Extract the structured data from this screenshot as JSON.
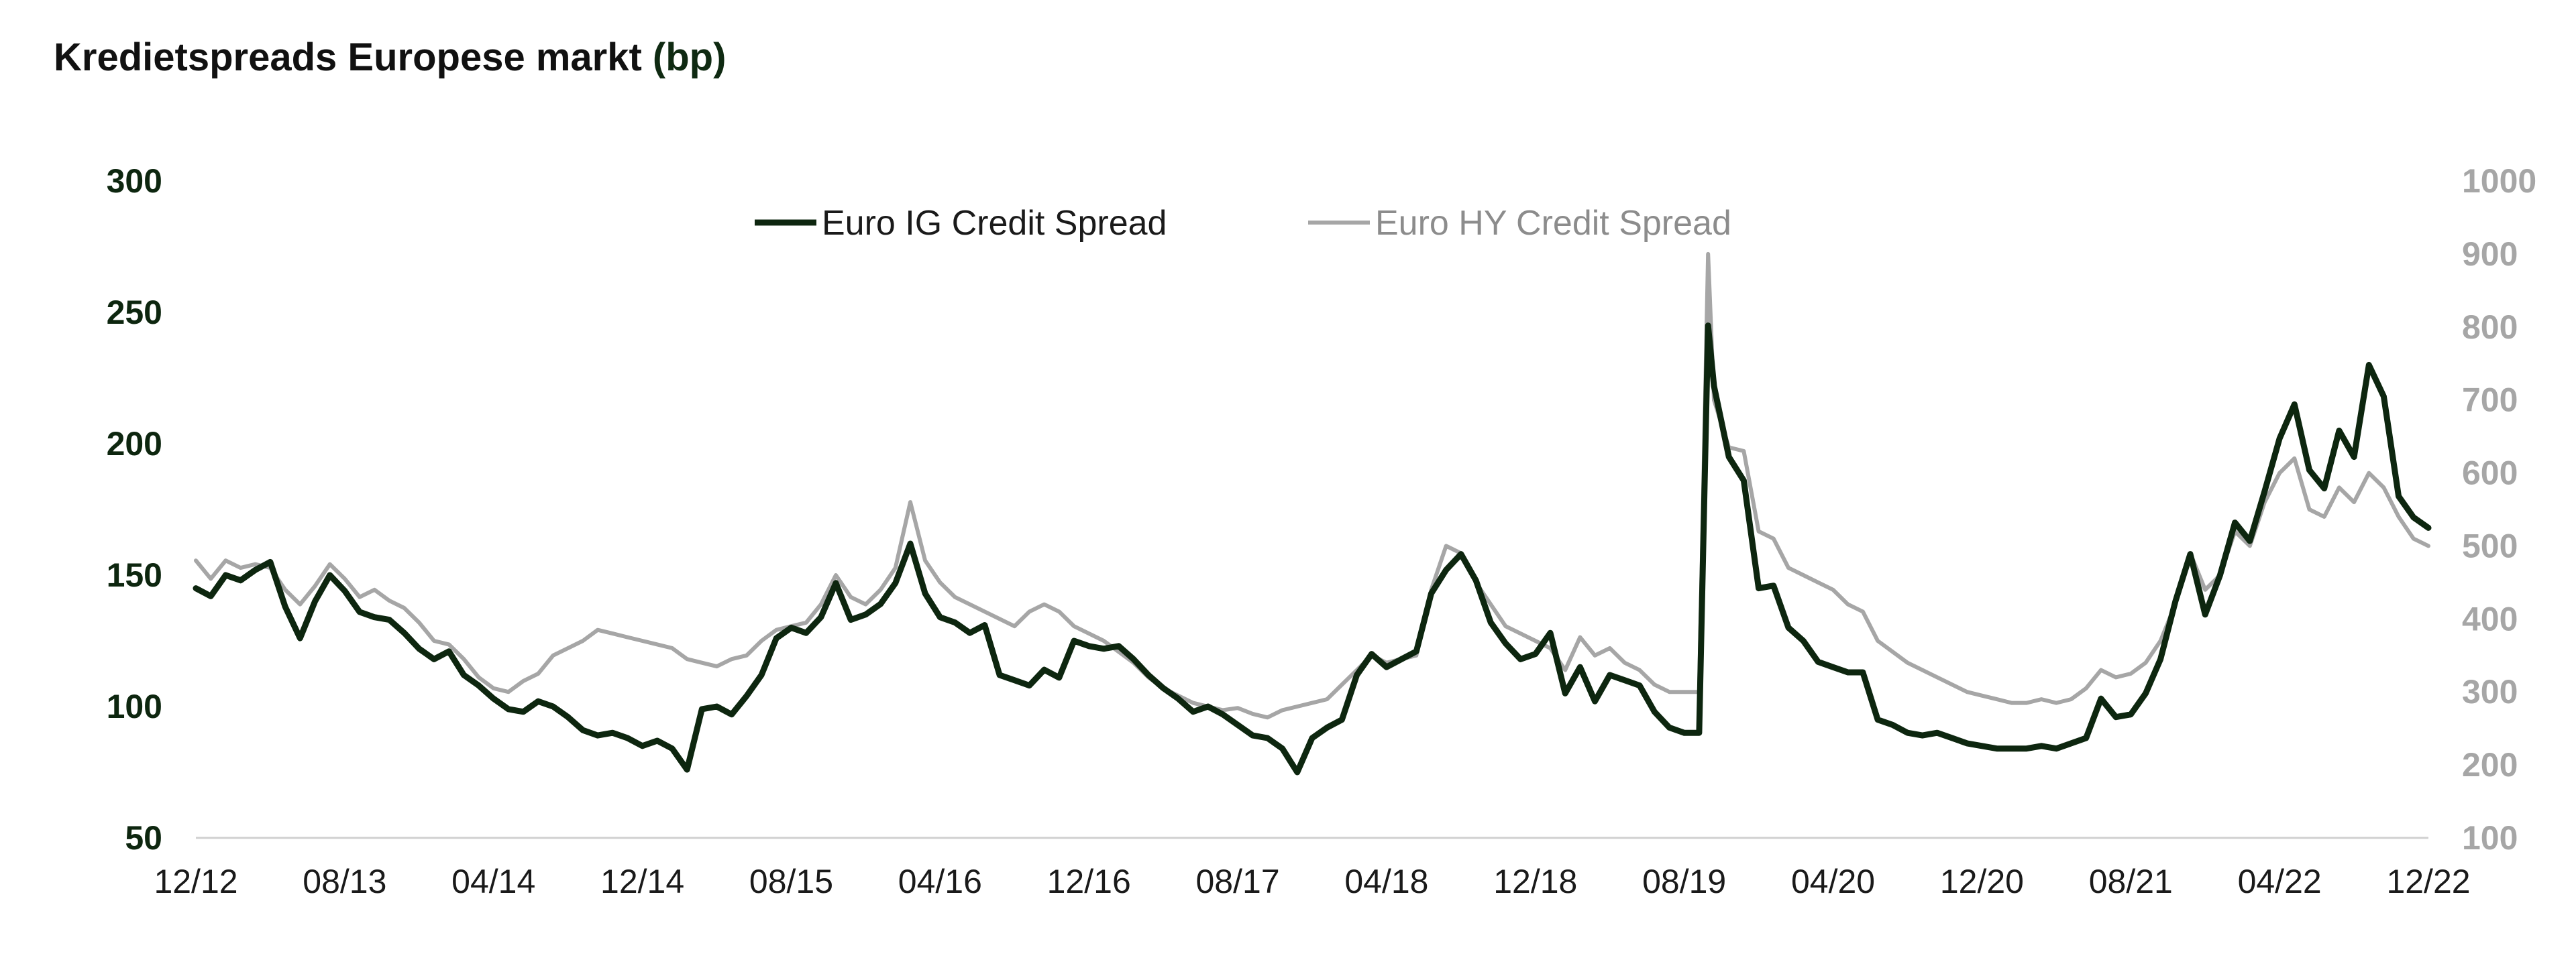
{
  "title": "Kredietspreads Europese markt",
  "title_unit": "(bp)",
  "chart_data": {
    "type": "line",
    "title": "Kredietspreads Europese markt (bp)",
    "x_tick_labels": [
      "12/12",
      "08/13",
      "04/14",
      "12/14",
      "08/15",
      "04/16",
      "12/16",
      "08/17",
      "04/18",
      "12/18",
      "08/19",
      "04/20",
      "12/20",
      "08/21",
      "04/22",
      "12/22"
    ],
    "y_left": {
      "ticks": [
        "300",
        "250",
        "200",
        "150",
        "100",
        "50"
      ],
      "range": [
        50,
        300
      ]
    },
    "y_right": {
      "ticks": [
        "1000",
        "900",
        "800",
        "700",
        "600",
        "500",
        "400",
        "300",
        "200",
        "100"
      ],
      "range": [
        100,
        1000
      ]
    },
    "legend": [
      "Euro IG Credit Spread",
      "Euro HY Credit Spread"
    ],
    "series": [
      {
        "name": "Euro IG Credit Spread",
        "axis": "left",
        "color": "#0d260f",
        "points": [
          [
            0,
            145
          ],
          [
            1,
            142
          ],
          [
            2,
            150
          ],
          [
            3,
            148
          ],
          [
            4,
            152
          ],
          [
            5,
            155
          ],
          [
            6,
            138
          ],
          [
            7,
            126
          ],
          [
            8,
            140
          ],
          [
            9,
            150
          ],
          [
            10,
            144
          ],
          [
            11,
            136
          ],
          [
            12,
            134
          ],
          [
            13,
            133
          ],
          [
            14,
            128
          ],
          [
            15,
            122
          ],
          [
            16,
            118
          ],
          [
            17,
            121
          ],
          [
            18,
            112
          ],
          [
            19,
            108
          ],
          [
            20,
            103
          ],
          [
            21,
            99
          ],
          [
            22,
            98
          ],
          [
            23,
            102
          ],
          [
            24,
            100
          ],
          [
            25,
            96
          ],
          [
            26,
            91
          ],
          [
            27,
            89
          ],
          [
            28,
            90
          ],
          [
            29,
            88
          ],
          [
            30,
            85
          ],
          [
            31,
            87
          ],
          [
            32,
            84
          ],
          [
            33,
            76
          ],
          [
            34,
            99
          ],
          [
            35,
            100
          ],
          [
            36,
            97
          ],
          [
            37,
            104
          ],
          [
            38,
            112
          ],
          [
            39,
            126
          ],
          [
            40,
            130
          ],
          [
            41,
            128
          ],
          [
            42,
            134
          ],
          [
            43,
            147
          ],
          [
            44,
            133
          ],
          [
            45,
            135
          ],
          [
            46,
            139
          ],
          [
            47,
            147
          ],
          [
            48,
            162
          ],
          [
            49,
            143
          ],
          [
            50,
            134
          ],
          [
            51,
            132
          ],
          [
            52,
            128
          ],
          [
            53,
            131
          ],
          [
            54,
            112
          ],
          [
            55,
            110
          ],
          [
            56,
            108
          ],
          [
            57,
            114
          ],
          [
            58,
            111
          ],
          [
            59,
            125
          ],
          [
            60,
            123
          ],
          [
            61,
            122
          ],
          [
            62,
            123
          ],
          [
            63,
            118
          ],
          [
            64,
            112
          ],
          [
            65,
            107
          ],
          [
            66,
            103
          ],
          [
            67,
            98
          ],
          [
            68,
            100
          ],
          [
            69,
            97
          ],
          [
            70,
            93
          ],
          [
            71,
            89
          ],
          [
            72,
            88
          ],
          [
            73,
            84
          ],
          [
            74,
            75
          ],
          [
            75,
            88
          ],
          [
            76,
            92
          ],
          [
            77,
            95
          ],
          [
            78,
            112
          ],
          [
            79,
            120
          ],
          [
            80,
            115
          ],
          [
            81,
            118
          ],
          [
            82,
            121
          ],
          [
            83,
            143
          ],
          [
            84,
            152
          ],
          [
            85,
            158
          ],
          [
            86,
            148
          ],
          [
            87,
            132
          ],
          [
            88,
            124
          ],
          [
            89,
            118
          ],
          [
            90,
            120
          ],
          [
            91,
            128
          ],
          [
            92,
            105
          ],
          [
            93,
            115
          ],
          [
            94,
            102
          ],
          [
            95,
            112
          ],
          [
            96,
            110
          ],
          [
            97,
            108
          ],
          [
            98,
            98
          ],
          [
            99,
            92
          ],
          [
            100,
            90
          ],
          [
            101,
            90
          ],
          [
            101.6,
            245
          ],
          [
            102,
            222
          ],
          [
            103,
            195
          ],
          [
            104,
            186
          ],
          [
            105,
            145
          ],
          [
            106,
            146
          ],
          [
            107,
            130
          ],
          [
            108,
            125
          ],
          [
            109,
            117
          ],
          [
            110,
            115
          ],
          [
            111,
            113
          ],
          [
            112,
            113
          ],
          [
            113,
            95
          ],
          [
            114,
            93
          ],
          [
            115,
            90
          ],
          [
            116,
            89
          ],
          [
            117,
            90
          ],
          [
            118,
            88
          ],
          [
            119,
            86
          ],
          [
            120,
            85
          ],
          [
            121,
            84
          ],
          [
            122,
            84
          ],
          [
            123,
            84
          ],
          [
            124,
            85
          ],
          [
            125,
            84
          ],
          [
            126,
            86
          ],
          [
            127,
            88
          ],
          [
            128,
            103
          ],
          [
            129,
            96
          ],
          [
            130,
            97
          ],
          [
            131,
            105
          ],
          [
            132,
            118
          ],
          [
            133,
            140
          ],
          [
            134,
            158
          ],
          [
            135,
            135
          ],
          [
            136,
            150
          ],
          [
            137,
            170
          ],
          [
            138,
            163
          ],
          [
            139,
            182
          ],
          [
            140,
            202
          ],
          [
            141,
            215
          ],
          [
            142,
            190
          ],
          [
            143,
            183
          ],
          [
            144,
            205
          ],
          [
            145,
            195
          ],
          [
            146,
            230
          ],
          [
            147,
            218
          ],
          [
            148,
            180
          ],
          [
            149,
            172
          ],
          [
            150,
            168
          ]
        ]
      },
      {
        "name": "Euro HY Credit Spread",
        "axis": "right",
        "color": "#a6a6a6",
        "points": [
          [
            0,
            480
          ],
          [
            1,
            455
          ],
          [
            2,
            480
          ],
          [
            3,
            470
          ],
          [
            4,
            475
          ],
          [
            5,
            470
          ],
          [
            6,
            440
          ],
          [
            7,
            420
          ],
          [
            8,
            445
          ],
          [
            9,
            475
          ],
          [
            10,
            455
          ],
          [
            11,
            430
          ],
          [
            12,
            440
          ],
          [
            13,
            425
          ],
          [
            14,
            415
          ],
          [
            15,
            395
          ],
          [
            16,
            370
          ],
          [
            17,
            365
          ],
          [
            18,
            345
          ],
          [
            19,
            320
          ],
          [
            20,
            305
          ],
          [
            21,
            300
          ],
          [
            22,
            315
          ],
          [
            23,
            325
          ],
          [
            24,
            350
          ],
          [
            25,
            360
          ],
          [
            26,
            370
          ],
          [
            27,
            385
          ],
          [
            28,
            380
          ],
          [
            29,
            375
          ],
          [
            30,
            370
          ],
          [
            31,
            365
          ],
          [
            32,
            360
          ],
          [
            33,
            345
          ],
          [
            34,
            340
          ],
          [
            35,
            335
          ],
          [
            36,
            345
          ],
          [
            37,
            350
          ],
          [
            38,
            370
          ],
          [
            39,
            385
          ],
          [
            40,
            390
          ],
          [
            41,
            395
          ],
          [
            42,
            420
          ],
          [
            43,
            460
          ],
          [
            44,
            430
          ],
          [
            45,
            420
          ],
          [
            46,
            440
          ],
          [
            47,
            470
          ],
          [
            48,
            560
          ],
          [
            49,
            480
          ],
          [
            50,
            450
          ],
          [
            51,
            430
          ],
          [
            52,
            420
          ],
          [
            53,
            410
          ],
          [
            54,
            400
          ],
          [
            55,
            390
          ],
          [
            56,
            410
          ],
          [
            57,
            420
          ],
          [
            58,
            410
          ],
          [
            59,
            390
          ],
          [
            60,
            380
          ],
          [
            61,
            370
          ],
          [
            62,
            355
          ],
          [
            63,
            340
          ],
          [
            64,
            320
          ],
          [
            65,
            305
          ],
          [
            66,
            295
          ],
          [
            67,
            285
          ],
          [
            68,
            280
          ],
          [
            69,
            275
          ],
          [
            70,
            278
          ],
          [
            71,
            270
          ],
          [
            72,
            265
          ],
          [
            73,
            275
          ],
          [
            74,
            280
          ],
          [
            75,
            285
          ],
          [
            76,
            290
          ],
          [
            77,
            310
          ],
          [
            78,
            330
          ],
          [
            79,
            350
          ],
          [
            80,
            340
          ],
          [
            81,
            345
          ],
          [
            82,
            350
          ],
          [
            83,
            440
          ],
          [
            84,
            500
          ],
          [
            85,
            490
          ],
          [
            86,
            450
          ],
          [
            87,
            420
          ],
          [
            88,
            390
          ],
          [
            89,
            380
          ],
          [
            90,
            370
          ],
          [
            91,
            360
          ],
          [
            92,
            330
          ],
          [
            93,
            375
          ],
          [
            94,
            350
          ],
          [
            95,
            360
          ],
          [
            96,
            340
          ],
          [
            97,
            330
          ],
          [
            98,
            310
          ],
          [
            99,
            300
          ],
          [
            100,
            300
          ],
          [
            101,
            300
          ],
          [
            101.6,
            900
          ],
          [
            102,
            700
          ],
          [
            103,
            635
          ],
          [
            104,
            630
          ],
          [
            105,
            520
          ],
          [
            106,
            510
          ],
          [
            107,
            470
          ],
          [
            108,
            460
          ],
          [
            109,
            450
          ],
          [
            110,
            440
          ],
          [
            111,
            420
          ],
          [
            112,
            410
          ],
          [
            113,
            370
          ],
          [
            114,
            355
          ],
          [
            115,
            340
          ],
          [
            116,
            330
          ],
          [
            117,
            320
          ],
          [
            118,
            310
          ],
          [
            119,
            300
          ],
          [
            120,
            295
          ],
          [
            121,
            290
          ],
          [
            122,
            285
          ],
          [
            123,
            285
          ],
          [
            124,
            290
          ],
          [
            125,
            285
          ],
          [
            126,
            290
          ],
          [
            127,
            305
          ],
          [
            128,
            330
          ],
          [
            129,
            320
          ],
          [
            130,
            325
          ],
          [
            131,
            340
          ],
          [
            132,
            370
          ],
          [
            133,
            420
          ],
          [
            134,
            490
          ],
          [
            135,
            440
          ],
          [
            136,
            460
          ],
          [
            137,
            520
          ],
          [
            138,
            500
          ],
          [
            139,
            560
          ],
          [
            140,
            600
          ],
          [
            141,
            620
          ],
          [
            142,
            550
          ],
          [
            143,
            540
          ],
          [
            144,
            580
          ],
          [
            145,
            560
          ],
          [
            146,
            600
          ],
          [
            147,
            580
          ],
          [
            148,
            540
          ],
          [
            149,
            510
          ],
          [
            150,
            500
          ]
        ]
      }
    ],
    "grid": false,
    "legend_position": "top-center"
  }
}
